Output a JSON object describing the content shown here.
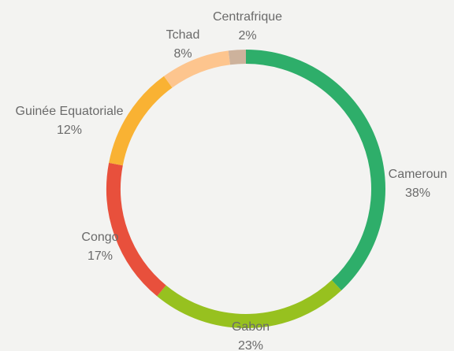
{
  "chart_data": {
    "type": "donut",
    "categories": [
      "Cameroun",
      "Gabon",
      "Congo",
      "Guinée Equatoriale",
      "Tchad",
      "Centrafrique"
    ],
    "values": [
      38,
      23,
      17,
      12,
      8,
      2
    ],
    "value_labels": [
      "38%",
      "23%",
      "17%",
      "12%",
      "8%",
      "2%"
    ],
    "colors": [
      "#2eae6a",
      "#97c11f",
      "#e8503c",
      "#f9b233",
      "#fdc58e",
      "#cdb29c"
    ]
  }
}
